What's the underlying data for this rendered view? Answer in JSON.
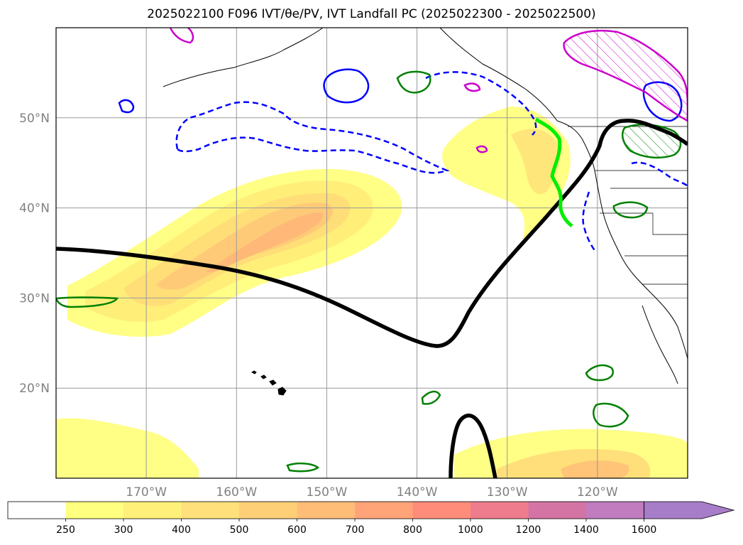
{
  "title": "2025022100 F096 IVT/θe/PV, IVT Landfall PC (2025022300 - 2025022500)",
  "map": {
    "projection": "equirectangular",
    "lon_range": [
      -180,
      -110
    ],
    "lat_range": [
      10,
      60
    ],
    "lat_ticks": [
      {
        "value": 20,
        "label": "20°N"
      },
      {
        "value": 30,
        "label": "30°N"
      },
      {
        "value": 40,
        "label": "40°N"
      },
      {
        "value": 50,
        "label": "50°N"
      }
    ],
    "lon_ticks": [
      {
        "value": -170,
        "label": "170°W"
      },
      {
        "value": -160,
        "label": "160°W"
      },
      {
        "value": -150,
        "label": "150°W"
      },
      {
        "value": -140,
        "label": "140°W"
      },
      {
        "value": -130,
        "label": "130°W"
      },
      {
        "value": -120,
        "label": "120°W"
      }
    ],
    "grid": true,
    "contour_colors": {
      "pc_line": "#000000",
      "landfall_line": "#00ee00",
      "theta_e_dashed": "#0000ff",
      "theta_e_solid": "#0000ff",
      "pv_contour": "#008000",
      "high_pv": "#cc00cc"
    }
  },
  "colorbar": {
    "levels": [
      {
        "label": "250",
        "color": "#ffffff"
      },
      {
        "label": "300",
        "color": "#ffff80"
      },
      {
        "label": "400",
        "color": "#fff07a"
      },
      {
        "label": "500",
        "color": "#ffe07a"
      },
      {
        "label": "600",
        "color": "#ffcf78"
      },
      {
        "label": "700",
        "color": "#ffbd78"
      },
      {
        "label": "800",
        "color": "#ffa478"
      },
      {
        "label": "1000",
        "color": "#ff8c7a"
      },
      {
        "label": "1200",
        "color": "#ee7c8c"
      },
      {
        "label": "1400",
        "color": "#d474a4"
      },
      {
        "label": "1600",
        "color": "#c07cbe"
      },
      {
        "label": "",
        "color": "#a77cc8"
      }
    ],
    "extend": "max"
  }
}
